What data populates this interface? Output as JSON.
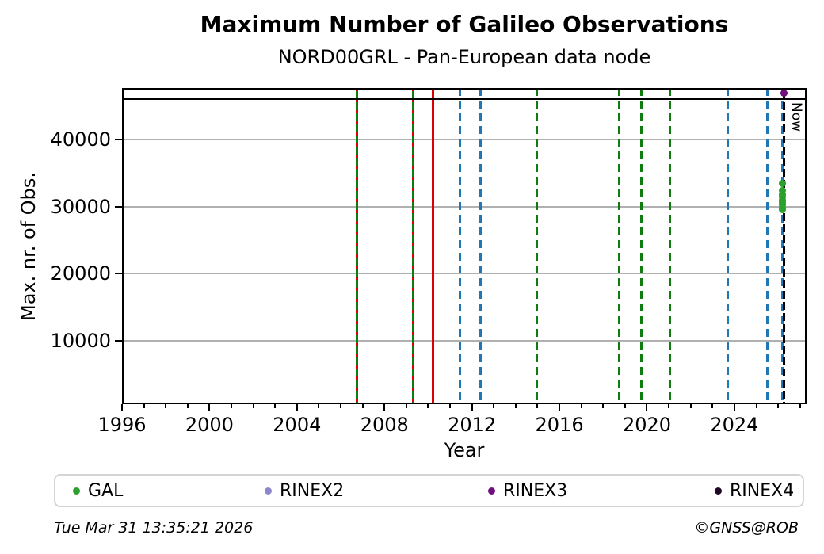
{
  "title": "Maximum Number of Galileo Observations",
  "subtitle": "NORD00GRL - Pan-European data node",
  "footer": {
    "timestamp": "Tue Mar 31 13:35:21 2026",
    "credit": "©GNSS@ROB"
  },
  "legend": {
    "items": [
      {
        "label": "GAL",
        "color": "#2ca02c"
      },
      {
        "label": "RINEX2",
        "color": "#8d88cc"
      },
      {
        "label": "RINEX3",
        "color": "#70107f"
      },
      {
        "label": "RINEX4",
        "color": "#210726"
      }
    ]
  },
  "chart_data": {
    "type": "scatter",
    "title": "Maximum Number of Galileo Observations",
    "subtitle": "NORD00GRL - Pan-European data node",
    "xlabel": "Year",
    "ylabel": "Max. nr. of Obs.",
    "xlim": [
      1996,
      2027.3
    ],
    "ylim": [
      500,
      47700
    ],
    "x_ticks": [
      1996,
      2000,
      2004,
      2008,
      2012,
      2016,
      2020,
      2024
    ],
    "y_ticks": [
      10000,
      20000,
      30000,
      40000
    ],
    "grid": "horizontal-gray",
    "hline": {
      "value": 46000,
      "color": "#000000",
      "style": "solid"
    },
    "now_line": {
      "year": 2026.25,
      "label": "Now",
      "style": "black-dashed"
    },
    "event_lines": [
      {
        "year": 2006.74,
        "style": "green-solid-red-dash"
      },
      {
        "year": 2009.31,
        "style": "green-solid-red-dash"
      },
      {
        "year": 2010.22,
        "style": "red-solid"
      },
      {
        "year": 2011.45,
        "style": "blue-dashed"
      },
      {
        "year": 2012.39,
        "style": "blue-dashed"
      },
      {
        "year": 2014.96,
        "style": "green-dashed"
      },
      {
        "year": 2018.72,
        "style": "green-dashed"
      },
      {
        "year": 2019.73,
        "style": "green-dashed"
      },
      {
        "year": 2021.04,
        "style": "green-dashed"
      },
      {
        "year": 2023.68,
        "style": "blue-dashed"
      },
      {
        "year": 2025.52,
        "style": "blue-dashed"
      },
      {
        "year": 2026.18,
        "style": "blue-dashed"
      }
    ],
    "series": [
      {
        "name": "GAL",
        "color": "#2ca02c",
        "points": [
          {
            "x": 2026.2,
            "y": 33500
          },
          {
            "x": 2026.2,
            "y": 32400
          },
          {
            "x": 2026.2,
            "y": 31800
          },
          {
            "x": 2026.2,
            "y": 31400
          },
          {
            "x": 2026.2,
            "y": 31000
          },
          {
            "x": 2026.2,
            "y": 30600
          },
          {
            "x": 2026.2,
            "y": 30200
          },
          {
            "x": 2026.2,
            "y": 29800
          },
          {
            "x": 2026.2,
            "y": 29500
          }
        ]
      },
      {
        "name": "RINEX2",
        "color": "#8d88cc",
        "points": []
      },
      {
        "name": "RINEX3",
        "color": "#70107f",
        "points": [
          {
            "x": 2026.25,
            "y": 46900
          }
        ]
      },
      {
        "name": "RINEX4",
        "color": "#210726",
        "points": []
      }
    ]
  }
}
